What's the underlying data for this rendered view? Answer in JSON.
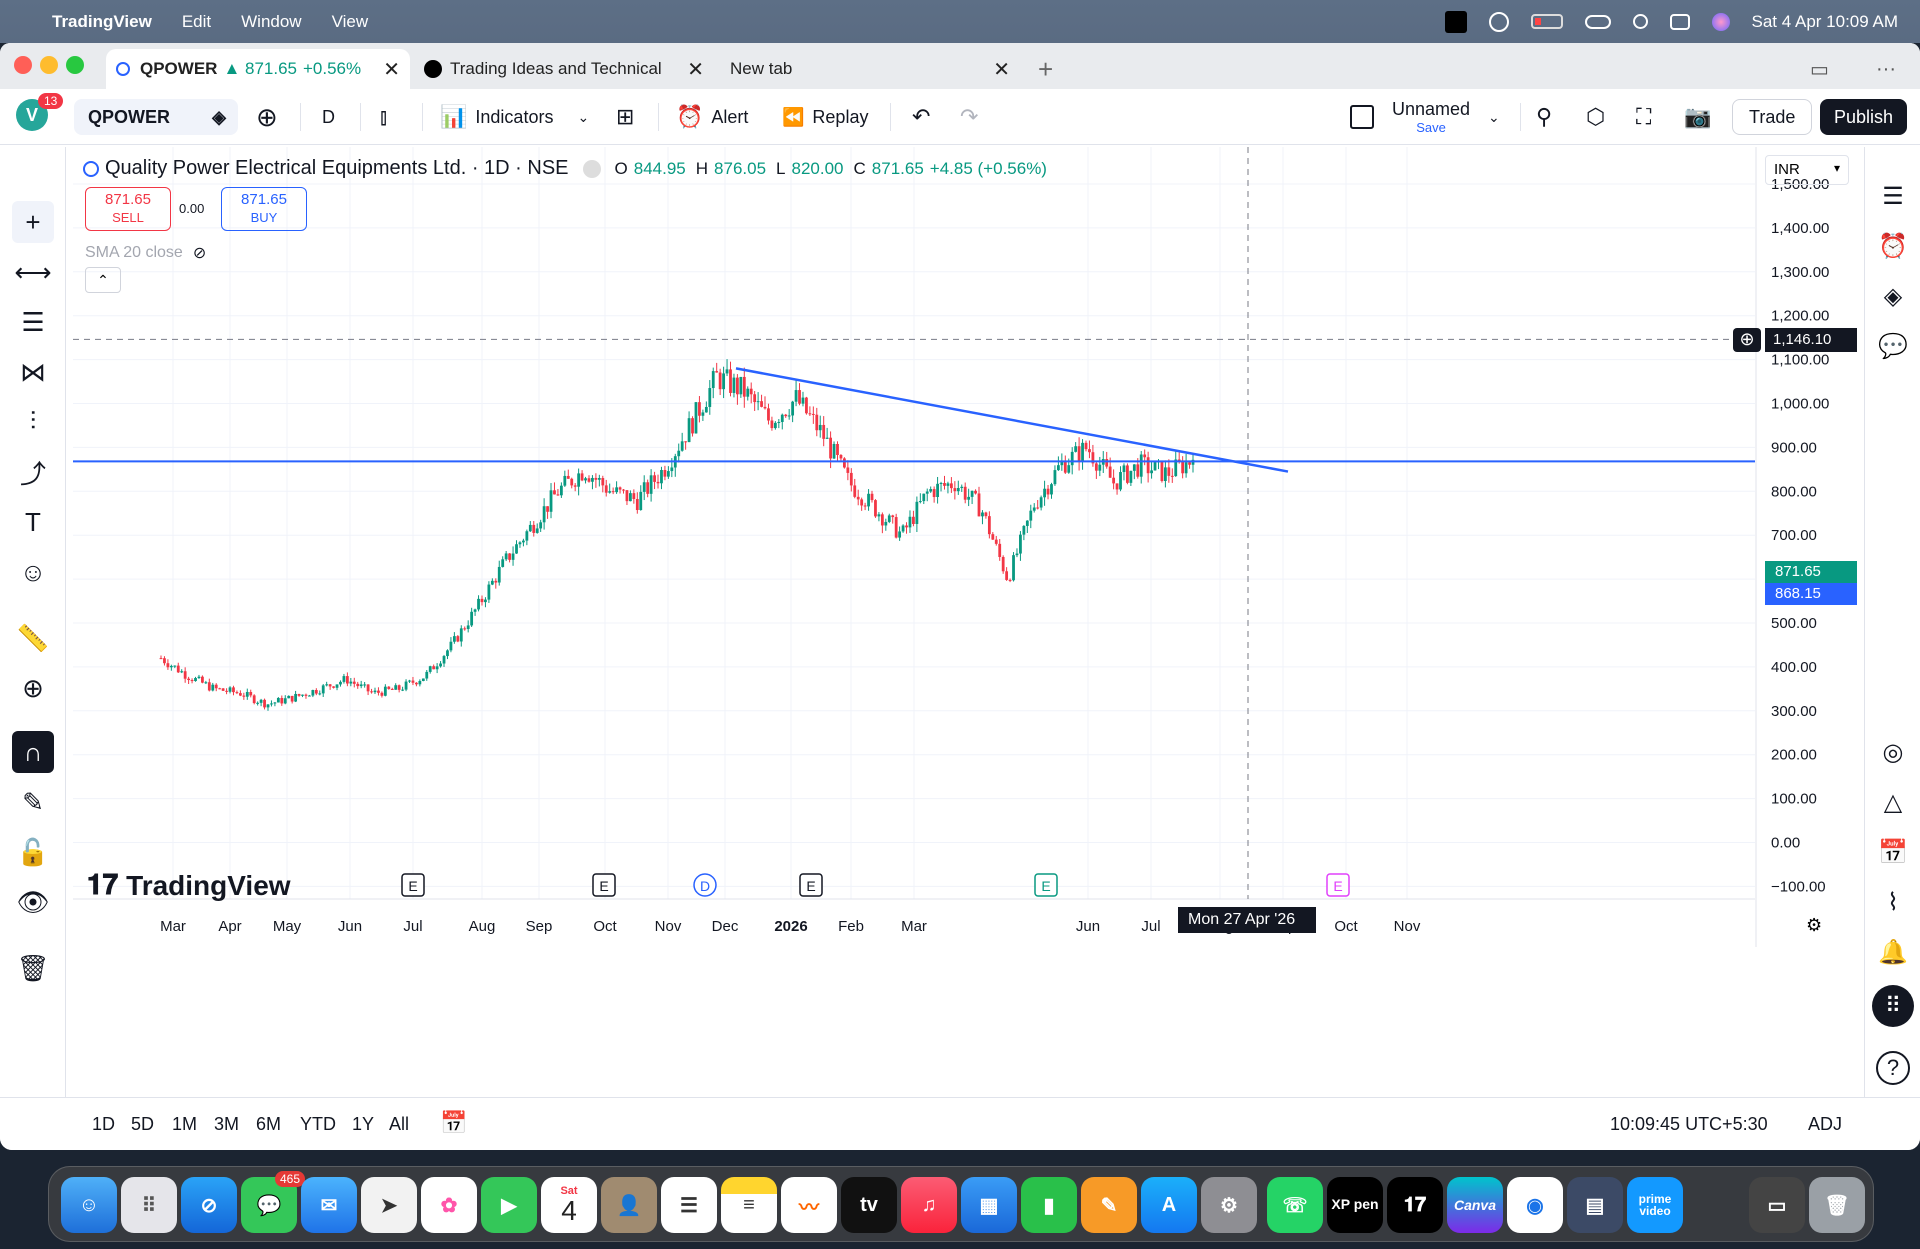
{
  "menubar": {
    "app": "TradingView",
    "items": [
      "Edit",
      "Window",
      "View"
    ],
    "datetime": "Sat 4 Apr  10:09 AM"
  },
  "tabs": [
    {
      "label": "QPOWER",
      "price": "▲ 871.65",
      "change": "+0.56%"
    },
    {
      "label": "Trading Ideas and Technical"
    },
    {
      "label": "New tab"
    }
  ],
  "toolbar": {
    "avatar_letter": "V",
    "notifications": "13",
    "symbol": "QPOWER",
    "interval": "D",
    "indicators": "Indicators",
    "alert": "Alert",
    "replay": "Replay",
    "layout_name": "Unnamed",
    "layout_save": "Save",
    "trade": "Trade",
    "publish": "Publish"
  },
  "legend": {
    "title": "Quality Power Electrical Equipments Ltd. · 1D · NSE",
    "o_label": "O",
    "o": "844.95",
    "h_label": "H",
    "h": "876.05",
    "l_label": "L",
    "l": "820.00",
    "c_label": "C",
    "c": "871.65",
    "chg": "+4.85 (+0.56%)",
    "sell_price": "871.65",
    "sell": "SELL",
    "spread": "0.00",
    "buy_price": "871.65",
    "buy": "BUY",
    "indicator": "SMA 20 close"
  },
  "currency": "INR",
  "price_axis": [
    "1,500.00",
    "1,400.00",
    "1,300.00",
    "1,200.00",
    "1,100.00",
    "1,000.00",
    "900.00",
    "800.00",
    "700.00",
    "600.00",
    "500.00",
    "400.00",
    "300.00",
    "200.00",
    "100.00",
    "0.00",
    "−100.00"
  ],
  "time_axis": [
    "Mar",
    "Apr",
    "May",
    "Jun",
    "Jul",
    "Aug",
    "Sep",
    "Oct",
    "Nov",
    "Dec",
    "2026",
    "Feb",
    "Mar",
    "Jun",
    "Jul",
    "Aug",
    "Sep",
    "Oct",
    "Nov"
  ],
  "crosshair": {
    "price": "1,146.10",
    "date": "Mon 27 Apr '26"
  },
  "last_price": "871.65",
  "line_price": "868.15",
  "event_markers": [
    "E",
    "E",
    "D",
    "E",
    "E",
    "E"
  ],
  "watermark": "TradingView",
  "bottombar": {
    "ranges": [
      "1D",
      "5D",
      "1M",
      "3M",
      "6M",
      "YTD",
      "1Y",
      "All"
    ],
    "clock": "10:09:45 UTC+5:30",
    "adj": "ADJ"
  },
  "dock": {
    "messages_badge": "465",
    "calendar_day": "Sat",
    "calendar_date": "4",
    "tv_label": "tv",
    "xp_label": "XP pen",
    "canva_label": "Canva",
    "prime_label": "prime video"
  },
  "colors": {
    "up": "#089981",
    "down": "#f23645",
    "trendline": "#2962ff",
    "accent": "#2962ff"
  },
  "chart_data": {
    "type": "candlestick",
    "title": "Quality Power Electrical Equipments Ltd. · 1D · NSE",
    "ylim": [
      -100,
      1500
    ],
    "close_path": [
      [
        "Feb 25",
        420
      ],
      [
        "Mar 5",
        380
      ],
      [
        "Mar 15",
        350
      ],
      [
        "Mar 28",
        340
      ],
      [
        "Apr 8",
        315
      ],
      [
        "Apr 18",
        330
      ],
      [
        "Apr 28",
        350
      ],
      [
        "May 8",
        372
      ],
      [
        "May 20",
        340
      ],
      [
        "Jun 2",
        350
      ],
      [
        "Jun 15",
        380
      ],
      [
        "Jun 28",
        450
      ],
      [
        "Jul 10",
        540
      ],
      [
        "Jul 22",
        640
      ],
      [
        "Aug 2",
        720
      ],
      [
        "Aug 12",
        800
      ],
      [
        "Aug 20",
        850
      ],
      [
        "Aug 28",
        800
      ],
      [
        "Sep 8",
        780
      ],
      [
        "Sep 18",
        850
      ],
      [
        "Sep 28",
        950
      ],
      [
        "Oct 5",
        1060
      ],
      [
        "Oct 12",
        1030
      ],
      [
        "Oct 22",
        960
      ],
      [
        "Nov 2",
        1010
      ],
      [
        "Nov 10",
        930
      ],
      [
        "Nov 20",
        820
      ],
      [
        "Dec 2",
        760
      ],
      [
        "Dec 14",
        700
      ],
      [
        "Dec 24",
        800
      ],
      [
        "Jan 5",
        820
      ],
      [
        "Jan 14",
        760
      ],
      [
        "Jan 22",
        600
      ],
      [
        "Feb 1",
        770
      ],
      [
        "Feb 12",
        860
      ],
      [
        "Feb 22",
        900
      ],
      [
        "Mar 3",
        820
      ],
      [
        "Mar 15",
        860
      ],
      [
        "Mar 25",
        840
      ],
      [
        "Apr 4",
        871.65
      ]
    ],
    "horizontal_line": 868.15,
    "trendline": [
      [
        "Oct 5 2025",
        1080
      ],
      [
        "May 2026",
        845
      ]
    ]
  }
}
